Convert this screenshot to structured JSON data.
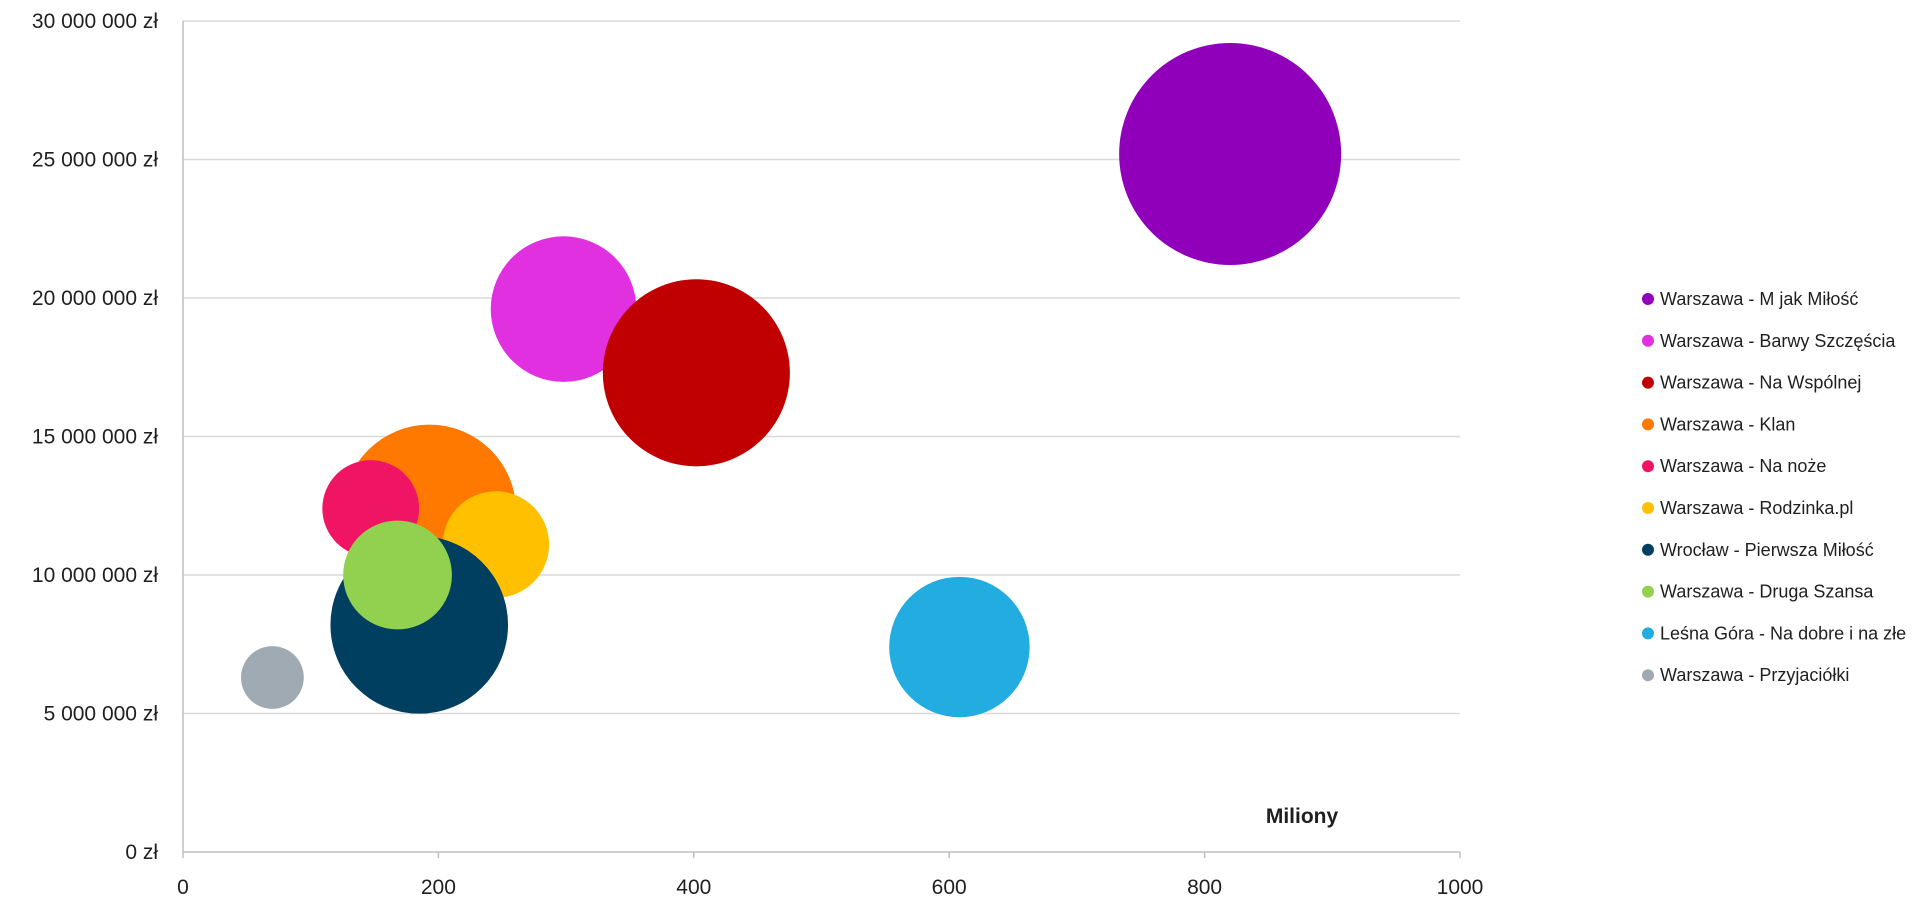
{
  "chart_data": {
    "type": "scatter",
    "subtype": "bubble",
    "title": "",
    "xlabel": "",
    "ylabel": "",
    "x_unit_label": "Miliony",
    "xlim": [
      0,
      1000
    ],
    "ylim": [
      0,
      30000000
    ],
    "x_ticks": [
      "0",
      "200",
      "400",
      "600",
      "800",
      "1000"
    ],
    "y_ticks": [
      "0 zł",
      "5 000 000 zł",
      "10 000 000 zł",
      "15 000 000 zł",
      "20 000 000 zł",
      "25 000 000 zł",
      "30 000 000 zł"
    ],
    "grid": true,
    "legend_position": "right",
    "series": [
      {
        "name": "Warszawa - M jak Miłość",
        "x": 820,
        "y": 25200000,
        "size": 1.0,
        "color": "#9000BB"
      },
      {
        "name": "Warszawa - Barwy Szczęścia",
        "x": 298,
        "y": 19600000,
        "size": 0.43,
        "color": "#E030E0"
      },
      {
        "name": "Warszawa - Na Wspólnej",
        "x": 402,
        "y": 17300000,
        "size": 0.71,
        "color": "#C00000"
      },
      {
        "name": "Warszawa - Klan",
        "x": 193,
        "y": 12300000,
        "size": 0.61,
        "color": "#FF7800"
      },
      {
        "name": "Warszawa - Na noże",
        "x": 147,
        "y": 12400000,
        "size": 0.19,
        "color": "#F01464"
      },
      {
        "name": "Warszawa - Rodzinka.pl",
        "x": 245,
        "y": 11100000,
        "size": 0.23,
        "color": "#FFC000"
      },
      {
        "name": "Wrocław - Pierwsza Miłość",
        "x": 185,
        "y": 8200000,
        "size": 0.64,
        "color": "#003F60"
      },
      {
        "name": "Warszawa - Druga Szansa",
        "x": 168,
        "y": 10000000,
        "size": 0.24,
        "color": "#92D050"
      },
      {
        "name": "Leśna Góra - Na dobre i na złe",
        "x": 608,
        "y": 7400000,
        "size": 0.4,
        "color": "#22ACDF"
      },
      {
        "name": "Warszawa - Przyjaciółki",
        "x": 70,
        "y": 6300000,
        "size": 0.08,
        "color": "#A0AAB2"
      }
    ]
  }
}
